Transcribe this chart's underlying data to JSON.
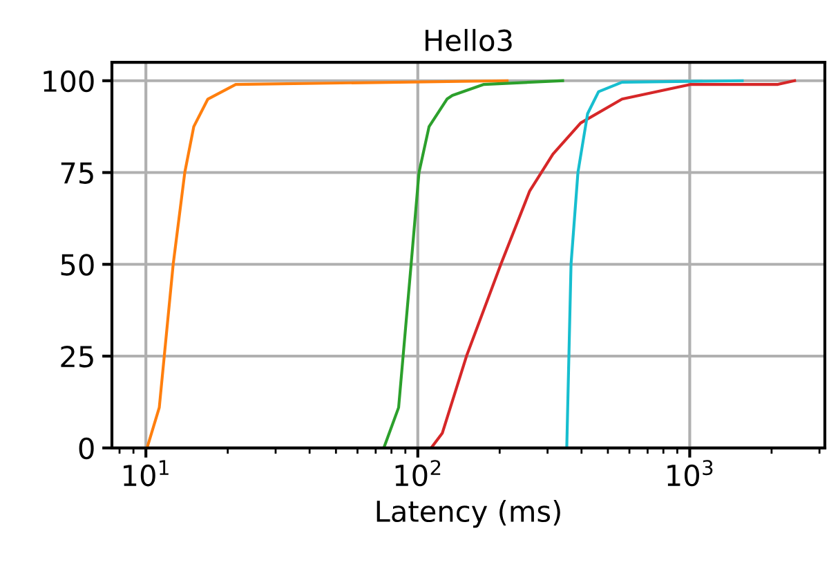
{
  "chart_data": {
    "type": "line",
    "title": "Hello3",
    "xlabel": "Latency (ms)",
    "log": "x",
    "grid": true,
    "legend": false,
    "xlim": [
      7.5,
      3140
    ],
    "ylim": [
      0,
      105
    ],
    "xticks": [
      {
        "value": 10,
        "label": "10$^{1}$"
      },
      {
        "value": 100,
        "label": "10$^{2}$"
      },
      {
        "value": 1000,
        "label": "10$^{3}$"
      }
    ],
    "yticks": [
      0,
      25,
      50,
      75,
      100
    ],
    "series": [
      {
        "color": "#ff7f0e",
        "x": [
          10.1,
          11.2,
          12.6,
          13.9,
          15.0,
          16.9,
          21.4,
          213
        ],
        "values": [
          0,
          11,
          50,
          75,
          87.5,
          95,
          99,
          100
        ]
      },
      {
        "color": "#2ca02c",
        "x": [
          75,
          85,
          94.5,
          101,
          110,
          128,
          134,
          175,
          341
        ],
        "values": [
          0,
          11,
          50,
          75,
          87.5,
          95,
          96,
          99,
          100
        ]
      },
      {
        "color": "#d62728",
        "x": [
          112,
          123,
          151,
          202,
          258,
          314,
          397,
          564,
          1010,
          2110,
          2430
        ],
        "values": [
          0,
          4,
          25,
          50,
          70,
          80,
          88.5,
          95,
          99,
          99,
          100
        ]
      },
      {
        "color": "#17becf",
        "x": [
          353,
          366,
          388,
          421,
          462,
          564,
          1560
        ],
        "values": [
          0,
          50,
          75,
          91,
          97,
          99.6,
          100
        ]
      }
    ]
  }
}
